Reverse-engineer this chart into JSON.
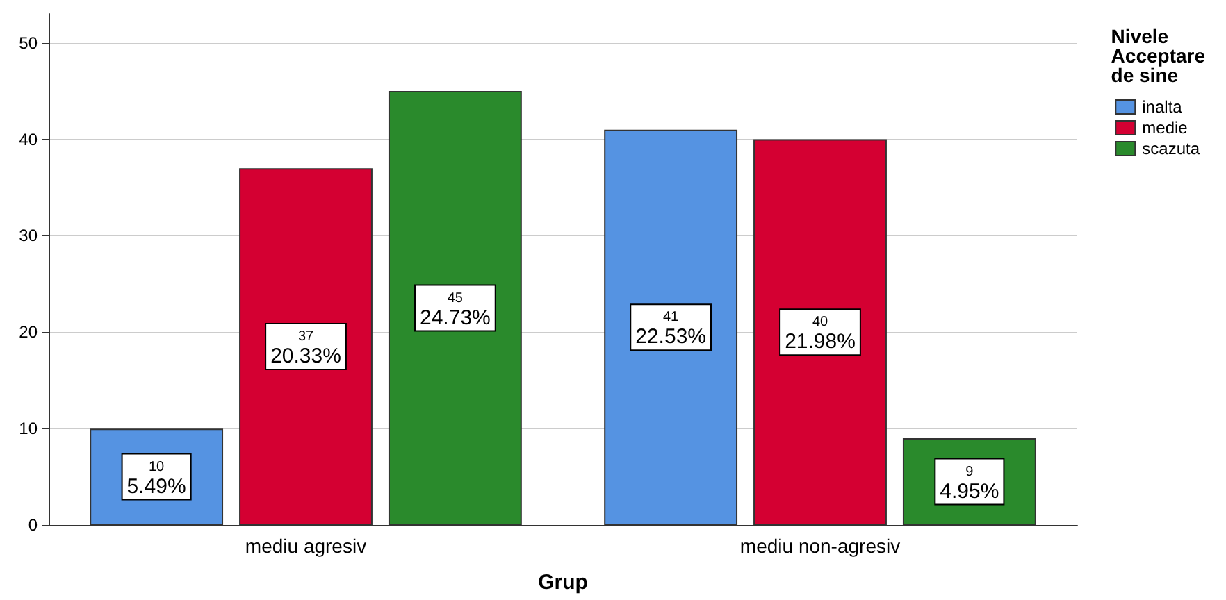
{
  "chart_data": {
    "type": "bar",
    "xlabel": "Grup",
    "legend_title": "Nivele\nAcceptare\nde sine",
    "categories": [
      "mediu agresiv",
      "mediu non-agresiv"
    ],
    "series": [
      {
        "name": "inalta",
        "color": "#5593e2",
        "values": [
          10,
          41
        ],
        "value_labels": [
          "10\n5.49%",
          "41\n22.53%"
        ]
      },
      {
        "name": "medie",
        "color": "#d40032",
        "values": [
          37,
          40
        ],
        "value_labels": [
          "37\n20.33%",
          "40\n21.98%"
        ]
      },
      {
        "name": "scazuta",
        "color": "#2a8a2c",
        "values": [
          45,
          9
        ],
        "value_labels": [
          "45\n24.73%",
          "9\n4.95%"
        ]
      }
    ],
    "ylim": [
      0,
      53
    ],
    "yticks": [
      0,
      10,
      20,
      30,
      40,
      50
    ],
    "grid": "y",
    "legend": "top right"
  }
}
